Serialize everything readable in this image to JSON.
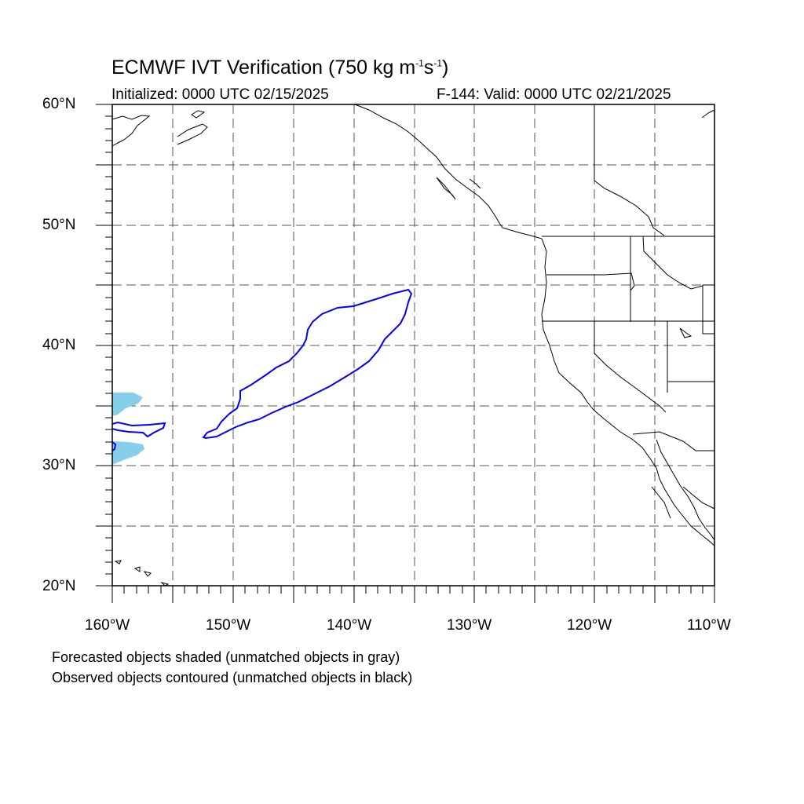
{
  "title": {
    "main_prefix": "ECMWF IVT Verification (750 kg m",
    "exp1": "-1",
    "middle": "s",
    "exp2": "-1",
    "suffix": ")"
  },
  "subtitle": {
    "initialized": "Initialized: 0000 UTC 02/15/2025",
    "valid": "F-144: Valid: 0000 UTC 02/21/2025"
  },
  "axes": {
    "lat_labels": [
      "60°N",
      "50°N",
      "40°N",
      "30°N",
      "20°N"
    ],
    "lon_labels": [
      "160°W",
      "150°W",
      "140°W",
      "130°W",
      "120°W",
      "110°W"
    ],
    "lat_range": [
      20,
      60
    ],
    "lon_range": [
      -160,
      -110
    ],
    "grid": "dashed every 5 degrees"
  },
  "notes": {
    "line1": "Forecasted objects shaded (unmatched objects in gray)",
    "line2": "Observed objects contoured (unmatched objects in black)"
  },
  "colors": {
    "forecast_fill": "#87ceeb",
    "observed_contour": "#0000ff",
    "coastline": "#000000",
    "grid": "#555555"
  }
}
